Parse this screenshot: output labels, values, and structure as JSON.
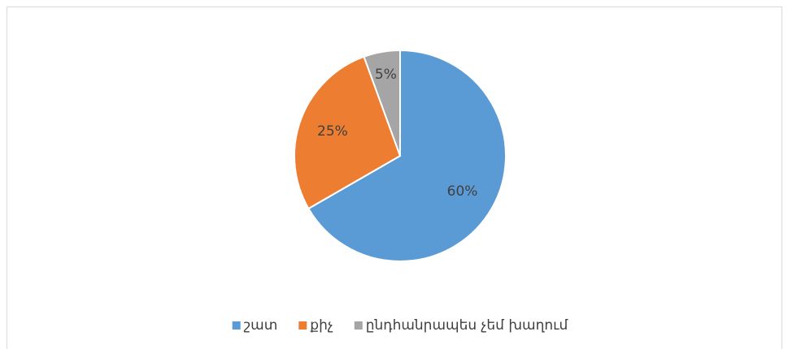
{
  "chart_data": {
    "type": "pie",
    "categories": [
      "շատ",
      "քիչ",
      "ընդհանրապես չեմ խաղում"
    ],
    "values": [
      60,
      25,
      5
    ],
    "value_labels": [
      "60%",
      "25%",
      "5%"
    ],
    "colors": [
      "#5b9bd5",
      "#ed7d31",
      "#a5a5a5"
    ],
    "legend": "bottom"
  }
}
